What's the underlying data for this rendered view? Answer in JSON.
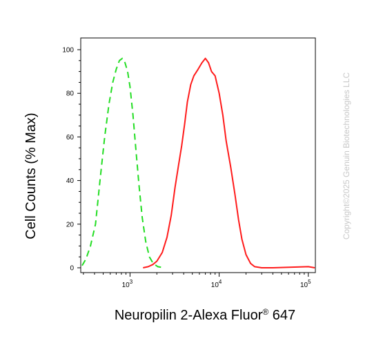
{
  "chart_data": {
    "type": "line",
    "ylabel": "Cell Counts (% Max)",
    "xlabel": {
      "main": "Neuropilin 2-Alexa Fluor",
      "sup": "®",
      "tail": " 647"
    },
    "x_scale": "log",
    "xlim": [
      280,
      120000
    ],
    "ylim": [
      0,
      100
    ],
    "y_ticks": [
      0,
      20,
      40,
      60,
      80,
      100
    ],
    "y_tick_labels": [
      "0",
      "20",
      "40",
      "60",
      "80",
      "100"
    ],
    "x_major_ticks": [
      {
        "value": 1000,
        "base": "10",
        "exp": "3"
      },
      {
        "value": 10000,
        "base": "10",
        "exp": "4"
      },
      {
        "value": 100000,
        "base": "10",
        "exp": "5"
      }
    ],
    "grid": false,
    "watermark": "Copyright©2025 Genuin Biotechnologies LLC",
    "series": [
      {
        "color": "#22dd22",
        "style": "dashed",
        "points": [
          [
            290,
            1
          ],
          [
            320,
            4
          ],
          [
            360,
            10
          ],
          [
            410,
            20
          ],
          [
            460,
            40
          ],
          [
            520,
            60
          ],
          [
            580,
            75
          ],
          [
            640,
            85
          ],
          [
            700,
            91
          ],
          [
            760,
            95
          ],
          [
            820,
            96
          ],
          [
            880,
            94
          ],
          [
            940,
            90
          ],
          [
            1000,
            83
          ],
          [
            1080,
            70
          ],
          [
            1160,
            55
          ],
          [
            1260,
            38
          ],
          [
            1370,
            23
          ],
          [
            1500,
            12
          ],
          [
            1650,
            5
          ],
          [
            1820,
            2
          ],
          [
            2050,
            0.5
          ],
          [
            2400,
            0
          ]
        ]
      },
      {
        "color": "#ff1a1a",
        "style": "solid",
        "points": [
          [
            1400,
            0
          ],
          [
            1600,
            0.5
          ],
          [
            1800,
            1.5
          ],
          [
            2000,
            3
          ],
          [
            2300,
            7
          ],
          [
            2600,
            14
          ],
          [
            2900,
            24
          ],
          [
            3200,
            37
          ],
          [
            3500,
            47
          ],
          [
            3800,
            56
          ],
          [
            4100,
            66
          ],
          [
            4400,
            76
          ],
          [
            4800,
            84
          ],
          [
            5200,
            88
          ],
          [
            5800,
            91
          ],
          [
            6400,
            94
          ],
          [
            7000,
            96
          ],
          [
            7600,
            94
          ],
          [
            8200,
            90
          ],
          [
            9000,
            88
          ],
          [
            10000,
            80
          ],
          [
            11000,
            70
          ],
          [
            12000,
            58
          ],
          [
            13500,
            46
          ],
          [
            15000,
            34
          ],
          [
            16500,
            22
          ],
          [
            18000,
            13
          ],
          [
            20000,
            6
          ],
          [
            22500,
            2
          ],
          [
            25000,
            0.5
          ],
          [
            30000,
            0
          ],
          [
            40000,
            0
          ],
          [
            100000,
            0.5
          ],
          [
            118000,
            0
          ]
        ]
      }
    ]
  }
}
